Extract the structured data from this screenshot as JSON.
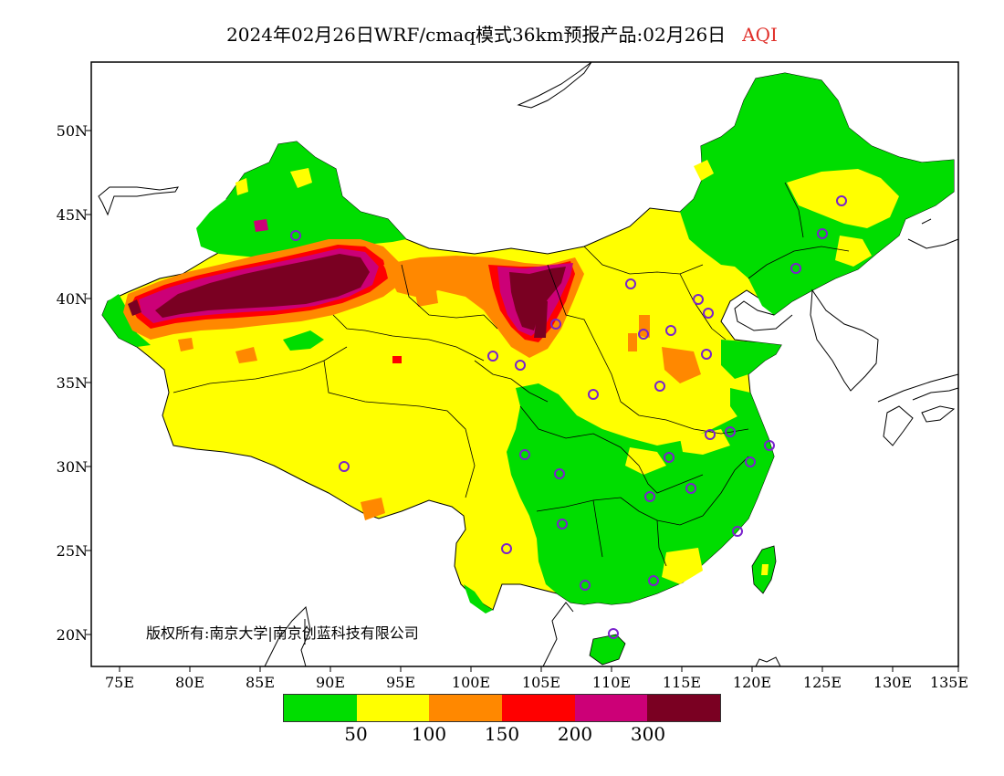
{
  "title": {
    "main": "2024年02月26日WRF/cmaq模式36km预报产品:02月26日",
    "variable": "AQI",
    "variable_color": "#e0302a"
  },
  "axes": {
    "y_ticks": [
      "50N",
      "45N",
      "40N",
      "35N",
      "30N",
      "25N",
      "20N"
    ],
    "x_ticks": [
      "75E",
      "80E",
      "85E",
      "90E",
      "95E",
      "100E",
      "105E",
      "110E",
      "115E",
      "120E",
      "125E",
      "130E",
      "135E"
    ]
  },
  "copyright": "版权所有:南京大学|南京创蓝科技有限公司",
  "legend": {
    "colors": [
      "#00dd00",
      "#ffff00",
      "#ff8800",
      "#ff0000",
      "#cc0077",
      "#7a0022"
    ],
    "ticks": [
      "50",
      "100",
      "150",
      "200",
      "300"
    ]
  },
  "map": {
    "land_colors": {
      "good": "#00dd00",
      "moderate": "#ffff00",
      "unhealthy_sensitive": "#ff8800",
      "unhealthy": "#ff0000",
      "very_unhealthy": "#cc0077",
      "hazardous": "#7a0022"
    },
    "station_marker_color": "#7a22cc"
  }
}
